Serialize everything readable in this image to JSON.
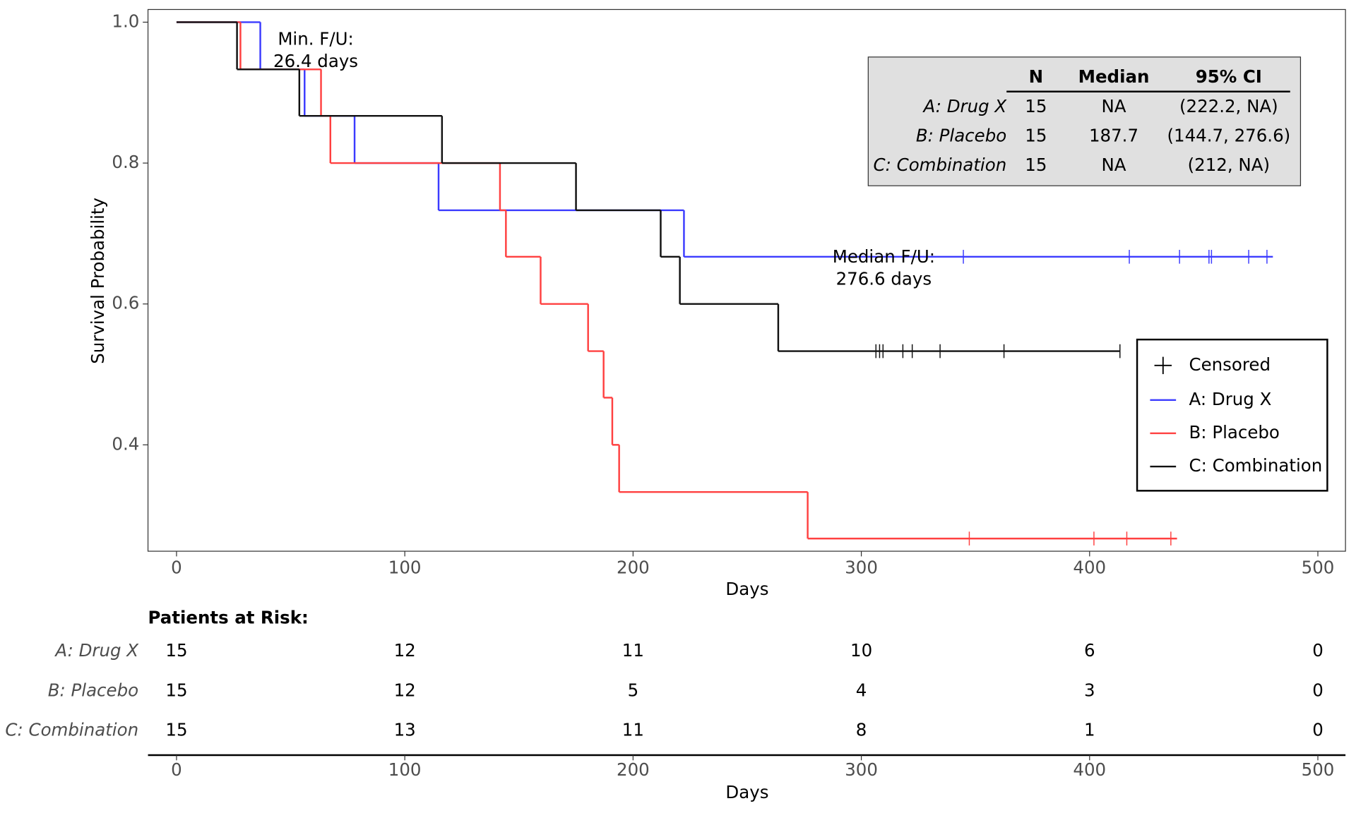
{
  "chart_data": {
    "type": "step",
    "xlabel": "Days",
    "ylabel": "Survival Probability",
    "xlim": [
      -12.5,
      512.1
    ],
    "ylim": [
      0.249,
      1.018
    ],
    "xticks": [
      0,
      100,
      200,
      300,
      400,
      500
    ],
    "yticks": [
      0.4,
      0.6,
      0.8,
      {
        "value": 1,
        "label": "1.0"
      }
    ],
    "series": [
      {
        "name": "A: Drug X",
        "color": "#3b3bff",
        "x": [
          0,
          36.7,
          56.1,
          78,
          114.8,
          222.3,
          480.3
        ],
        "values": [
          1,
          0.933,
          0.867,
          0.8,
          0.733,
          0.667,
          0.667
        ],
        "censored_x": [
          344.7,
          417.4,
          439.4,
          452.3,
          453.4,
          469.7,
          477.7
        ],
        "censored_values": [
          0.667,
          0.667,
          0.667,
          0.667,
          0.667,
          0.667,
          0.667
        ]
      },
      {
        "name": "B: Placebo",
        "color": "#ff4040",
        "x": [
          0,
          28.0,
          63.3,
          67.4,
          141.7,
          144.3,
          159.5,
          180.3,
          187.1,
          190.9,
          193.9,
          276.5,
          438.3
        ],
        "values": [
          1,
          0.933,
          0.867,
          0.8,
          0.733,
          0.667,
          0.6,
          0.533,
          0.467,
          0.4,
          0.333,
          0.267,
          0.267
        ],
        "censored_x": [
          347.3,
          401.9,
          416.3,
          435.6
        ],
        "censored_values": [
          0.267,
          0.267,
          0.267,
          0.267
        ]
      },
      {
        "name": "C: Combination",
        "color": "#111111",
        "x": [
          0,
          26.5,
          53.8,
          116.3,
          175,
          212.1,
          220.5,
          263.6,
          413.3
        ],
        "values": [
          1,
          0.933,
          0.867,
          0.8,
          0.733,
          0.667,
          0.6,
          0.533,
          0.533
        ],
        "censored_x": [
          306.4,
          308,
          309.5,
          318.2,
          322.3,
          334.5,
          362.5,
          413.3
        ],
        "censored_values": [
          0.533,
          0.533,
          0.533,
          0.533,
          0.533,
          0.533,
          0.533,
          0.533
        ]
      }
    ],
    "legend": {
      "censored_label": "Censored",
      "position": "right"
    },
    "annotations": [
      {
        "lines": [
          "Min. F/U:",
          "26.4 days"
        ]
      },
      {
        "lines": [
          "Median F/U:",
          "276.6 days"
        ]
      }
    ],
    "summary_table": {
      "header": [
        "N",
        "Median",
        "95% CI"
      ],
      "rows": [
        {
          "label": "A: Drug X",
          "cells": [
            "15",
            "NA",
            "(222.2, NA)"
          ]
        },
        {
          "label": "B: Placebo",
          "cells": [
            "15",
            "187.7",
            "(144.7, 276.6)"
          ]
        },
        {
          "label": "C: Combination",
          "cells": [
            "15",
            "NA",
            "(212, NA)"
          ]
        }
      ]
    },
    "risk_table": {
      "title": "Patients at Risk:",
      "times": [
        0,
        100,
        200,
        300,
        400,
        500
      ],
      "rows": [
        {
          "label": "A: Drug X",
          "counts": [
            15,
            12,
            11,
            10,
            6,
            0
          ]
        },
        {
          "label": "B: Placebo",
          "counts": [
            15,
            12,
            5,
            4,
            3,
            0
          ]
        },
        {
          "label": "C: Combination",
          "counts": [
            15,
            13,
            11,
            8,
            1,
            0
          ]
        }
      ]
    }
  }
}
